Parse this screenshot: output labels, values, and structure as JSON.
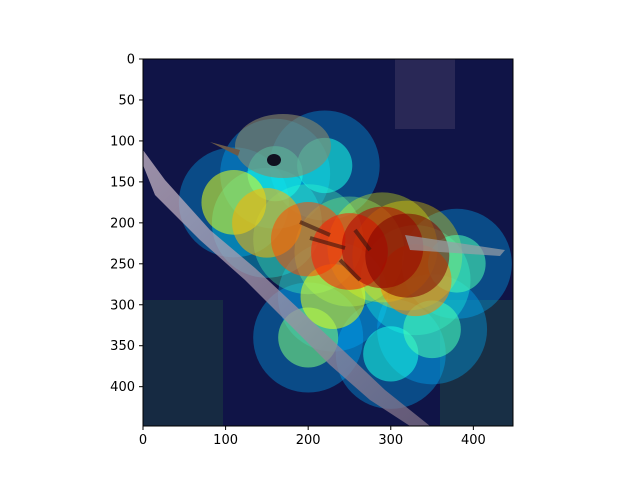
{
  "chart_data": {
    "type": "heatmap",
    "title": "",
    "xlabel": "",
    "ylabel": "",
    "xlim": [
      0,
      448
    ],
    "ylim": [
      448,
      0
    ],
    "xticks": [
      0,
      100,
      200,
      300,
      400
    ],
    "yticks": [
      0,
      50,
      100,
      150,
      200,
      250,
      300,
      350,
      400
    ],
    "colormap": "jet",
    "image_subject": "bird perched on branch",
    "hotspots": [
      {
        "x": 320,
        "y": 240,
        "intensity": 1.0
      },
      {
        "x": 290,
        "y": 230,
        "intensity": 0.95
      },
      {
        "x": 250,
        "y": 235,
        "intensity": 0.85
      },
      {
        "x": 200,
        "y": 220,
        "intensity": 0.8
      },
      {
        "x": 150,
        "y": 200,
        "intensity": 0.7
      },
      {
        "x": 110,
        "y": 175,
        "intensity": 0.6
      },
      {
        "x": 330,
        "y": 270,
        "intensity": 0.75
      },
      {
        "x": 230,
        "y": 290,
        "intensity": 0.6
      },
      {
        "x": 200,
        "y": 340,
        "intensity": 0.5
      },
      {
        "x": 350,
        "y": 330,
        "intensity": 0.45
      },
      {
        "x": 380,
        "y": 250,
        "intensity": 0.45
      },
      {
        "x": 300,
        "y": 360,
        "intensity": 0.4
      },
      {
        "x": 220,
        "y": 130,
        "intensity": 0.4
      },
      {
        "x": 160,
        "y": 140,
        "intensity": 0.4
      }
    ]
  }
}
